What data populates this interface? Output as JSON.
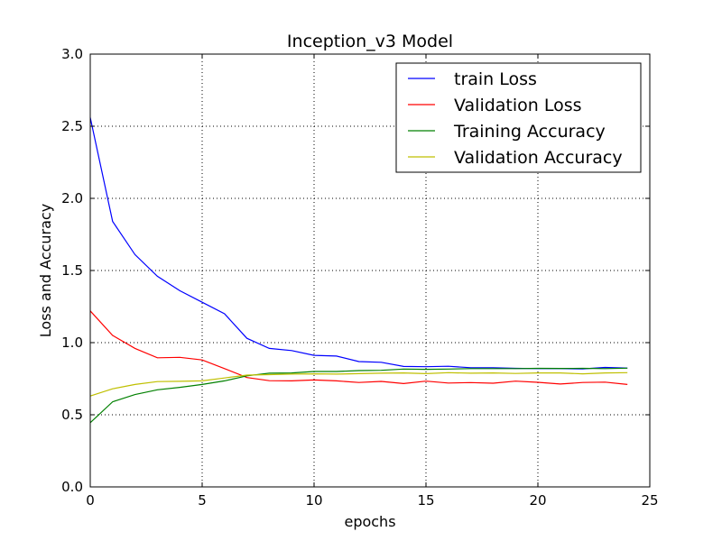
{
  "chart_data": {
    "type": "line",
    "title": "Inception_v3 Model",
    "xlabel": "epochs",
    "ylabel": "Loss and Accuracy",
    "xlim": [
      0,
      25
    ],
    "ylim": [
      0.0,
      3.0
    ],
    "x_ticks": [
      "0",
      "5",
      "10",
      "15",
      "20",
      "25"
    ],
    "y_ticks": [
      "0.0",
      "0.5",
      "1.0",
      "1.5",
      "2.0",
      "2.5",
      "3.0"
    ],
    "grid": true,
    "legend_position": "top-right",
    "x": [
      0,
      1,
      2,
      3,
      4,
      5,
      6,
      7,
      8,
      9,
      10,
      11,
      12,
      13,
      14,
      15,
      16,
      17,
      18,
      19,
      20,
      21,
      22,
      23,
      24
    ],
    "series": [
      {
        "name": "train Loss",
        "color": "#0000ff",
        "values": [
          2.56,
          1.84,
          1.61,
          1.46,
          1.36,
          1.28,
          1.2,
          1.03,
          0.96,
          0.945,
          0.912,
          0.907,
          0.869,
          0.864,
          0.835,
          0.833,
          0.836,
          0.826,
          0.826,
          0.822,
          0.82,
          0.82,
          0.818,
          0.828,
          0.824
        ]
      },
      {
        "name": "Validation Loss",
        "color": "#ff0000",
        "values": [
          1.22,
          1.05,
          0.96,
          0.895,
          0.898,
          0.88,
          0.82,
          0.758,
          0.736,
          0.735,
          0.741,
          0.735,
          0.724,
          0.731,
          0.716,
          0.733,
          0.72,
          0.723,
          0.719,
          0.733,
          0.725,
          0.713,
          0.724,
          0.726,
          0.71
        ]
      },
      {
        "name": "Training Accuracy",
        "color": "#008000",
        "values": [
          0.445,
          0.59,
          0.64,
          0.673,
          0.69,
          0.71,
          0.735,
          0.77,
          0.788,
          0.79,
          0.8,
          0.8,
          0.806,
          0.808,
          0.817,
          0.815,
          0.817,
          0.82,
          0.82,
          0.82,
          0.822,
          0.821,
          0.822,
          0.82,
          0.823
        ]
      },
      {
        "name": "Validation Accuracy",
        "color": "#bfbf00",
        "values": [
          0.63,
          0.68,
          0.71,
          0.73,
          0.732,
          0.735,
          0.755,
          0.775,
          0.778,
          0.782,
          0.784,
          0.782,
          0.785,
          0.788,
          0.79,
          0.785,
          0.792,
          0.788,
          0.79,
          0.786,
          0.79,
          0.79,
          0.784,
          0.79,
          0.792
        ]
      }
    ]
  }
}
